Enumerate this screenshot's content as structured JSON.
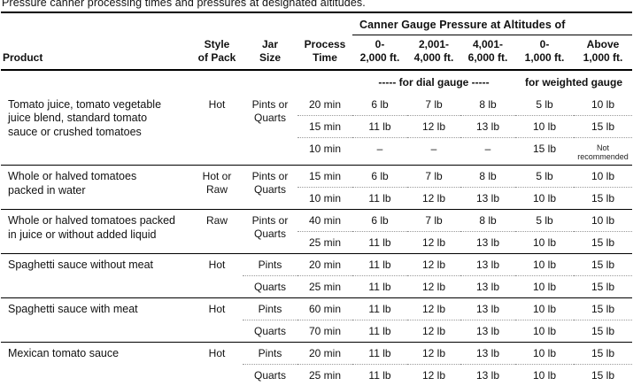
{
  "title": "Pressure canner processing times and pressures at designated altitudes.",
  "table": {
    "spanner_header": "Canner Gauge Pressure at Altitudes of",
    "columns": {
      "product": "Product",
      "style_of_pack": "Style\nof Pack",
      "jar_size": "Jar\nSize",
      "process_time": "Process\nTime",
      "alt_dial_1": "0-\n2,000 ft.",
      "alt_dial_2": "2,001-\n4,000 ft.",
      "alt_dial_3": "4,001-\n6,000 ft.",
      "alt_weighted_1": "0-\n1,000 ft.",
      "alt_weighted_2": "Above\n1,000 ft."
    },
    "gauge_group_labels": {
      "dial": "----- for dial gauge -----",
      "weighted": "for weighted gauge"
    },
    "groups": [
      {
        "product": "Tomato juice, tomato vegetable\njuice blend, standard tomato\nsauce or crushed tomatoes",
        "style": "Hot",
        "jar": "Pints or\nQuarts",
        "rows": [
          {
            "time": "20 min",
            "p": [
              "6 lb",
              "7 lb",
              "8 lb",
              "5 lb",
              "10 lb"
            ]
          },
          {
            "time": "15 min",
            "p": [
              "11 lb",
              "12 lb",
              "13 lb",
              "10 lb",
              "15 lb"
            ]
          },
          {
            "time": "10 min",
            "p": [
              "–",
              "–",
              "–",
              "15 lb",
              "Not recommended"
            ]
          }
        ]
      },
      {
        "product": "Whole or halved tomatoes\npacked in water",
        "style": "Hot or\nRaw",
        "jar": "Pints or\nQuarts",
        "rows": [
          {
            "time": "15 min",
            "p": [
              "6 lb",
              "7 lb",
              "8 lb",
              "5 lb",
              "10 lb"
            ]
          },
          {
            "time": "10 min",
            "p": [
              "11 lb",
              "12 lb",
              "13 lb",
              "10 lb",
              "15 lb"
            ]
          }
        ]
      },
      {
        "product": "Whole or halved tomatoes packed\nin juice or without added liquid",
        "style": "Raw",
        "jar": "Pints or\nQuarts",
        "rows": [
          {
            "time": "40 min",
            "p": [
              "6 lb",
              "7 lb",
              "8 lb",
              "5 lb",
              "10 lb"
            ]
          },
          {
            "time": "25 min",
            "p": [
              "11 lb",
              "12 lb",
              "13 lb",
              "10 lb",
              "15 lb"
            ]
          }
        ]
      },
      {
        "product": "Spaghetti sauce without meat",
        "style": "Hot",
        "rows": [
          {
            "jar": "Pints",
            "time": "20 min",
            "p": [
              "11 lb",
              "12 lb",
              "13 lb",
              "10 lb",
              "15 lb"
            ]
          },
          {
            "jar": "Quarts",
            "time": "25 min",
            "p": [
              "11 lb",
              "12 lb",
              "13 lb",
              "10 lb",
              "15 lb"
            ]
          }
        ]
      },
      {
        "product": "Spaghetti sauce with meat",
        "style": "Hot",
        "rows": [
          {
            "jar": "Pints",
            "time": "60 min",
            "p": [
              "11 lb",
              "12 lb",
              "13 lb",
              "10 lb",
              "15 lb"
            ]
          },
          {
            "jar": "Quarts",
            "time": "70 min",
            "p": [
              "11 lb",
              "12 lb",
              "13 lb",
              "10 lb",
              "15 lb"
            ]
          }
        ]
      },
      {
        "product": "Mexican tomato sauce",
        "style": "Hot",
        "rows": [
          {
            "jar": "Pints",
            "time": "20 min",
            "p": [
              "11 lb",
              "12 lb",
              "13 lb",
              "10 lb",
              "15 lb"
            ]
          },
          {
            "jar": "Quarts",
            "time": "25 min",
            "p": [
              "11 lb",
              "12 lb",
              "13 lb",
              "10 lb",
              "15 lb"
            ]
          }
        ]
      }
    ]
  }
}
